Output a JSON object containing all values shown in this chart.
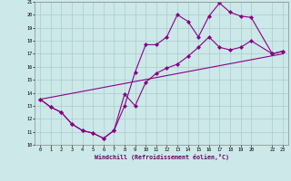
{
  "xlabel": "Windchill (Refroidissement éolien,°C)",
  "xlim": [
    -0.5,
    23.5
  ],
  "ylim": [
    10,
    21
  ],
  "xticks": [
    0,
    1,
    2,
    3,
    4,
    5,
    6,
    7,
    8,
    9,
    10,
    11,
    12,
    13,
    14,
    15,
    16,
    17,
    18,
    19,
    20,
    22,
    23
  ],
  "yticks": [
    10,
    11,
    12,
    13,
    14,
    15,
    16,
    17,
    18,
    19,
    20,
    21
  ],
  "background_color": "#cce8e8",
  "line_color": "#880088",
  "grid_color": "#aacccc",
  "line1_x": [
    0,
    1,
    2,
    3,
    4,
    5,
    6,
    7,
    8,
    9,
    10,
    11,
    12,
    13,
    14,
    15,
    16,
    17,
    18,
    19,
    20,
    22,
    23
  ],
  "line1_y": [
    13.5,
    12.9,
    12.5,
    11.6,
    11.1,
    10.9,
    10.5,
    11.1,
    13.0,
    15.6,
    17.7,
    17.7,
    18.3,
    20.0,
    19.5,
    18.3,
    19.9,
    20.9,
    20.2,
    19.9,
    19.8,
    17.0,
    17.2
  ],
  "line2_x": [
    0,
    1,
    2,
    3,
    4,
    5,
    6,
    7,
    8,
    9,
    10,
    11,
    12,
    13,
    14,
    15,
    16,
    17,
    18,
    19,
    20,
    22,
    23
  ],
  "line2_y": [
    13.5,
    12.9,
    12.5,
    11.6,
    11.1,
    10.9,
    10.5,
    11.1,
    13.9,
    13.0,
    14.8,
    15.5,
    15.9,
    16.2,
    16.8,
    17.5,
    18.3,
    17.5,
    17.3,
    17.5,
    18.0,
    17.0,
    17.2
  ],
  "line3_x": [
    0,
    23
  ],
  "line3_y": [
    13.5,
    17.0
  ]
}
